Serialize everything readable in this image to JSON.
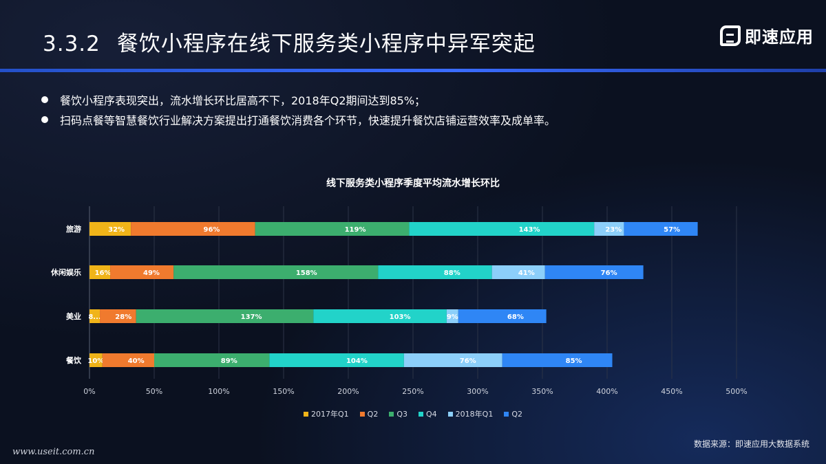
{
  "header": {
    "section_number": "3.3.2",
    "title": "餐饮小程序在线下服务类小程序中异军突起",
    "logo_text": "即速应用"
  },
  "bullets": [
    "餐饮小程序表现突出，流水增长环比居高不下，2018年Q2期间达到85%；",
    "扫码点餐等智慧餐饮行业解决方案提出打通餐饮消费各个环节，快速提升餐饮店铺运营效率及成单率。"
  ],
  "chart_data": {
    "type": "bar",
    "orientation": "horizontal",
    "stacked": true,
    "title": "线下服务类小程序季度平均流水增长环比",
    "categories": [
      "旅游",
      "休闲娱乐",
      "美业",
      "餐饮"
    ],
    "series": [
      {
        "name": "2017年Q1",
        "color": "#f0b419",
        "values": [
          32,
          16,
          8,
          10
        ],
        "labels": [
          "32%",
          "16%",
          "8...",
          "10%"
        ]
      },
      {
        "name": "Q2",
        "color": "#f07a2e",
        "values": [
          96,
          49,
          28,
          40
        ],
        "labels": [
          "96%",
          "49%",
          "28%",
          "40%"
        ]
      },
      {
        "name": "Q3",
        "color": "#3cae6e",
        "values": [
          119,
          158,
          137,
          89
        ],
        "labels": [
          "119%",
          "158%",
          "137%",
          "89%"
        ]
      },
      {
        "name": "Q4",
        "color": "#22d3c9",
        "values": [
          143,
          88,
          103,
          104
        ],
        "labels": [
          "143%",
          "88%",
          "103%",
          "104%"
        ]
      },
      {
        "name": "2018年Q1",
        "color": "#8ccffa",
        "values": [
          23,
          41,
          9,
          76
        ],
        "labels": [
          "23%",
          "41%",
          "9%",
          "76%"
        ]
      },
      {
        "name": "Q2",
        "color": "#2f86f5",
        "values": [
          57,
          76,
          68,
          85
        ],
        "labels": [
          "57%",
          "76%",
          "68%",
          "85%"
        ]
      }
    ],
    "xlim": [
      0,
      500
    ],
    "xticks": [
      "0%",
      "50%",
      "100%",
      "150%",
      "200%",
      "250%",
      "300%",
      "350%",
      "400%",
      "450%",
      "500%"
    ],
    "grid": true,
    "legend": "bottom"
  },
  "footer": {
    "source": "数据来源：即速应用大数据系统",
    "watermark": "www.useit.com.cn"
  }
}
